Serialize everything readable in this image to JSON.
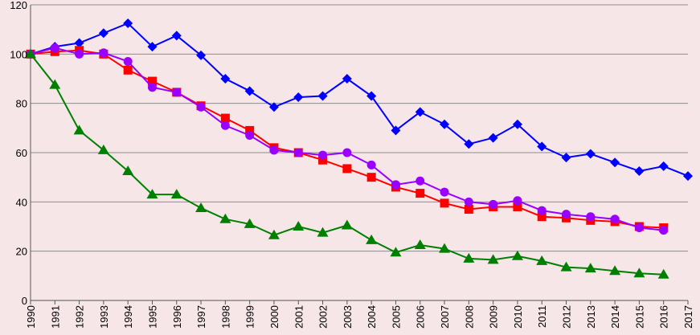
{
  "chart_data": {
    "type": "line",
    "title": "",
    "xlabel": "",
    "ylabel": "",
    "ylim": [
      0,
      120
    ],
    "y_ticks": [
      0,
      20,
      40,
      60,
      80,
      100,
      120
    ],
    "grid": "horizontal",
    "legend": "none",
    "background": "#f6e6e8",
    "categories": [
      "1990",
      "1991",
      "1992",
      "1993",
      "1994",
      "1995",
      "1996",
      "1997",
      "1998",
      "1999",
      "2000",
      "2001",
      "2002",
      "2003",
      "2004",
      "2005",
      "2006",
      "2007",
      "2008",
      "2009",
      "2010",
      "2011",
      "2012",
      "2013",
      "2014",
      "2015",
      "2016",
      "2017"
    ],
    "series": [
      {
        "color": "#0000ff",
        "marker": "diamond",
        "values": [
          100,
          103,
          104.5,
          108.5,
          112.5,
          103,
          107.5,
          99.5,
          90,
          85,
          78.5,
          82.5,
          83,
          90,
          83,
          69,
          76.5,
          71.5,
          63.5,
          66,
          71.5,
          62.5,
          58,
          59.5,
          56,
          52.5,
          54.5,
          50.5
        ]
      },
      {
        "color": "#ff0000",
        "marker": "square",
        "values": [
          100,
          101,
          101.5,
          100,
          93.5,
          89,
          84.5,
          79,
          74,
          69,
          62,
          60,
          57,
          53.5,
          50,
          46,
          43.5,
          39.5,
          37,
          38,
          38,
          34,
          33.5,
          32.5,
          32,
          30,
          29.5,
          null
        ]
      },
      {
        "color": "#9900ff",
        "marker": "circle",
        "values": [
          100,
          102.5,
          100,
          100.5,
          97,
          86.5,
          84.5,
          78.5,
          71,
          67,
          61,
          60,
          59,
          60,
          55,
          47,
          48.5,
          44,
          40,
          39,
          40.5,
          36.5,
          35,
          34,
          33,
          29.5,
          28.5,
          null
        ]
      },
      {
        "color": "#008000",
        "marker": "triangle",
        "values": [
          100,
          87.5,
          69,
          61,
          52.5,
          43,
          43,
          37.5,
          33,
          31,
          26.5,
          30,
          27.5,
          30.5,
          24.5,
          19.5,
          22.5,
          21,
          17,
          16.5,
          18,
          16,
          13.5,
          13,
          12,
          11,
          10.5,
          null
        ]
      }
    ]
  }
}
